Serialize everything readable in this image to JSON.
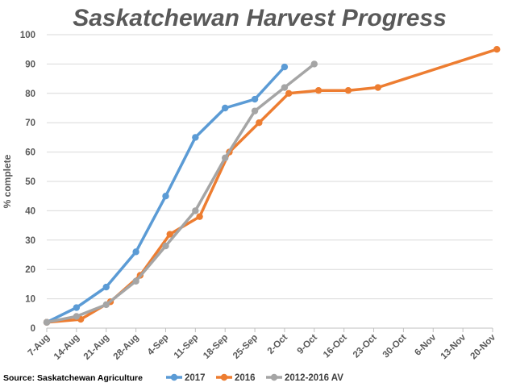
{
  "chart_data": {
    "type": "line",
    "title": "Saskatchewan Harvest Progress",
    "ylabel": "% complete",
    "xlabel": "",
    "ylim": [
      0,
      100
    ],
    "yticks": [
      0,
      10,
      20,
      30,
      40,
      50,
      60,
      70,
      80,
      90,
      100
    ],
    "x_ticks": [
      "7-Aug",
      "14-Aug",
      "21-Aug",
      "28-Aug",
      "4-Sep",
      "11-Sep",
      "18-Sep",
      "25-Sep",
      "2-Oct",
      "9-Oct",
      "16-Oct",
      "23-Oct",
      "30-Oct",
      "6-Nov",
      "13-Nov",
      "20-Nov"
    ],
    "grid": "horizontal",
    "legend_position": "bottom",
    "series": [
      {
        "name": "2017",
        "color": "#5b9bd5",
        "x": [
          "7-Aug",
          "14-Aug",
          "21-Aug",
          "28-Aug",
          "4-Sep",
          "11-Sep",
          "18-Sep",
          "25-Sep",
          "2-Oct"
        ],
        "values": [
          2,
          7,
          14,
          26,
          45,
          65,
          75,
          78,
          89
        ]
      },
      {
        "name": "2016",
        "color": "#ed7d31",
        "x": [
          "7-Aug",
          "15-Aug",
          "22-Aug",
          "29-Aug",
          "5-Sep",
          "12-Sep",
          "19-Sep",
          "26-Sep",
          "3-Oct",
          "10-Oct",
          "17-Oct",
          "24-Oct",
          "21-Nov"
        ],
        "values": [
          2,
          3,
          9,
          18,
          32,
          38,
          60,
          70,
          80,
          81,
          81,
          82,
          95
        ]
      },
      {
        "name": "2012-2016 AV",
        "color": "#a5a5a5",
        "x": [
          "7-Aug",
          "14-Aug",
          "21-Aug",
          "28-Aug",
          "4-Sep",
          "11-Sep",
          "18-Sep",
          "25-Sep",
          "2-Oct",
          "9-Oct"
        ],
        "values": [
          2,
          4,
          8,
          16,
          28,
          40,
          58,
          74,
          82,
          90
        ]
      }
    ]
  },
  "source": "Source: Saskatchewan Agriculture"
}
